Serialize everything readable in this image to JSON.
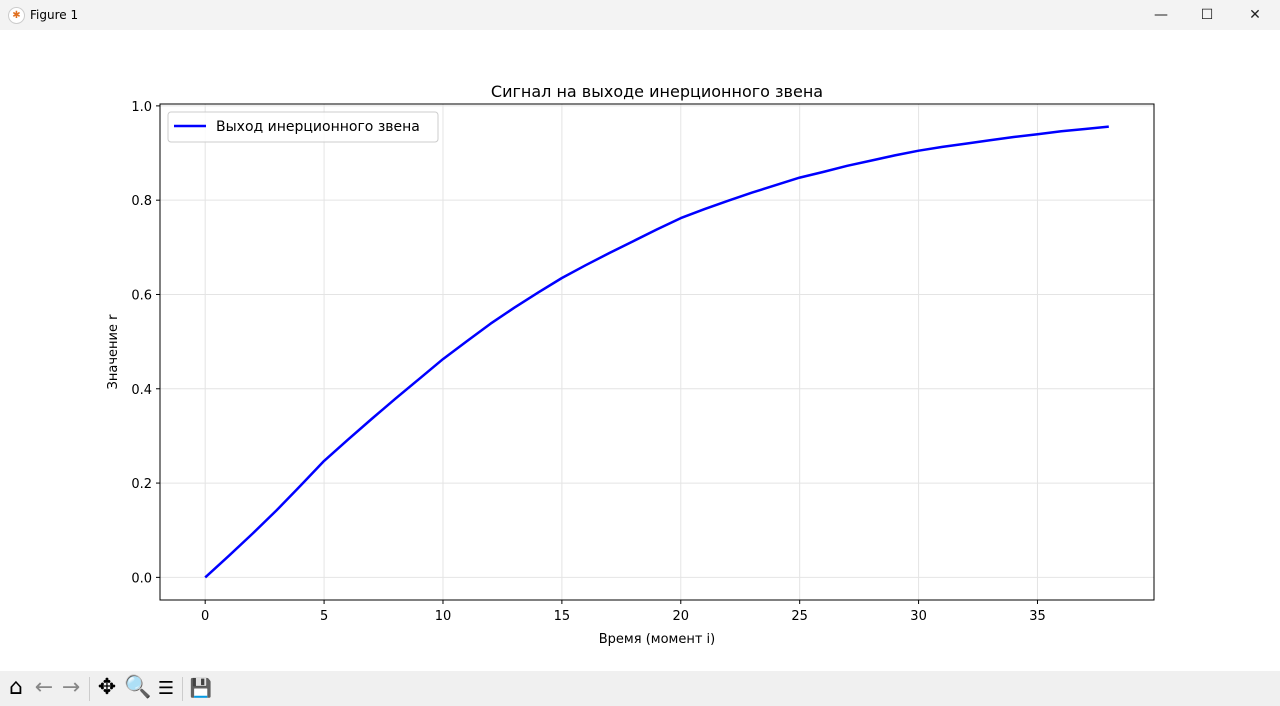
{
  "window": {
    "title": "Figure 1",
    "minimize": "—",
    "maximize": "☐",
    "close": "✕",
    "icon": "matplotlib-icon"
  },
  "toolbar": {
    "items": [
      {
        "name": "home-icon",
        "glyph": "⌂"
      },
      {
        "name": "back-icon",
        "glyph": "←"
      },
      {
        "name": "forward-icon",
        "glyph": "→"
      },
      {
        "name": "pan-icon",
        "glyph": "✥"
      },
      {
        "name": "zoom-icon",
        "glyph": "🔍"
      },
      {
        "name": "configure-subplots-icon",
        "glyph": "☰"
      },
      {
        "name": "save-icon",
        "glyph": "💾"
      }
    ]
  },
  "chart_data": {
    "type": "line",
    "title": "Сигнал на выходе инерционного звена",
    "xlabel": "Время (момент i)",
    "ylabel": "Значение r",
    "xlim": [
      -1.9,
      39.9
    ],
    "ylim": [
      -0.048,
      1.004
    ],
    "xticks": [
      0,
      5,
      10,
      15,
      20,
      25,
      30,
      35
    ],
    "yticks": [
      "0.0",
      "0.2",
      "0.4",
      "0.6",
      "0.8",
      "1.0"
    ],
    "grid": true,
    "legend": "upper-left",
    "series": [
      {
        "name": "Выход инерционного звена",
        "color": "#0000ff",
        "x": [
          0,
          1,
          2,
          3,
          4,
          5,
          6,
          7,
          8,
          9,
          10,
          11,
          12,
          13,
          14,
          15,
          16,
          17,
          18,
          19,
          20,
          21,
          22,
          23,
          24,
          25,
          26,
          27,
          28,
          29,
          30,
          31,
          32,
          33,
          34,
          35,
          36,
          37,
          38
        ],
        "y": [
          0,
          0.046,
          0.093,
          0.142,
          0.194,
          0.247,
          0.292,
          0.336,
          0.379,
          0.421,
          0.463,
          0.501,
          0.538,
          0.572,
          0.604,
          0.635,
          0.662,
          0.688,
          0.713,
          0.738,
          0.762,
          0.781,
          0.799,
          0.816,
          0.832,
          0.848,
          0.86,
          0.873,
          0.884,
          0.895,
          0.905,
          0.913,
          0.92,
          0.927,
          0.934,
          0.94,
          0.946,
          0.951,
          0.956
        ]
      }
    ]
  }
}
